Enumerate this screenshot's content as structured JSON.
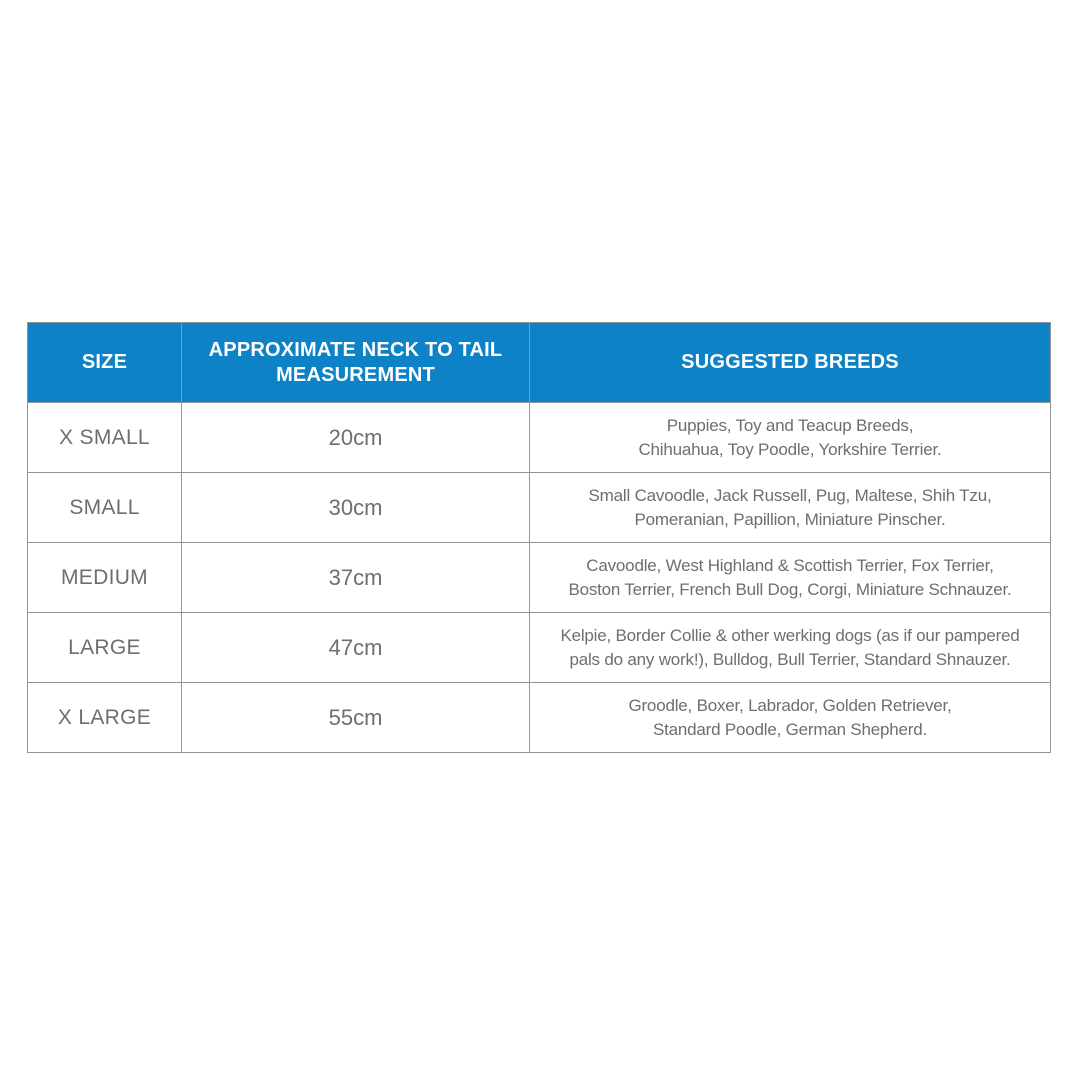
{
  "colors": {
    "header_bg": "#0e82c6",
    "header_text": "#ffffff",
    "body_text": "#6d6e71",
    "border": "#939598",
    "page_bg": "#ffffff"
  },
  "table": {
    "header": {
      "size": "SIZE",
      "measurement": "APPROXIMATE NECK TO TAIL\nMEASUREMENT",
      "breeds": "SUGGESTED BREEDS"
    },
    "rows": [
      {
        "size": "X SMALL",
        "measurement": "20cm",
        "breeds": "Puppies, Toy and Teacup Breeds,\nChihuahua, Toy Poodle, Yorkshire Terrier."
      },
      {
        "size": "SMALL",
        "measurement": "30cm",
        "breeds": "Small Cavoodle, Jack Russell, Pug, Maltese, Shih Tzu,\nPomeranian, Papillion, Miniature Pinscher."
      },
      {
        "size": "MEDIUM",
        "measurement": "37cm",
        "breeds": "Cavoodle, West Highland & Scottish Terrier, Fox Terrier,\nBoston Terrier, French Bull Dog, Corgi, Miniature Schnauzer."
      },
      {
        "size": "LARGE",
        "measurement": "47cm",
        "breeds": "Kelpie, Border Collie & other werking dogs (as if our pampered\npals do any work!), Bulldog, Bull Terrier, Standard Shnauzer."
      },
      {
        "size": "X LARGE",
        "measurement": "55cm",
        "breeds": "Groodle, Boxer, Labrador,  Golden Retriever,\nStandard Poodle, German Shepherd."
      }
    ]
  },
  "chart_data": {
    "type": "table",
    "title": "",
    "columns": [
      "SIZE",
      "APPROXIMATE NECK TO TAIL MEASUREMENT",
      "SUGGESTED BREEDS"
    ],
    "rows": [
      [
        "X SMALL",
        "20cm",
        "Puppies, Toy and Teacup Breeds, Chihuahua, Toy Poodle, Yorkshire Terrier."
      ],
      [
        "SMALL",
        "30cm",
        "Small Cavoodle, Jack Russell, Pug, Maltese, Shih Tzu, Pomeranian, Papillion, Miniature Pinscher."
      ],
      [
        "MEDIUM",
        "37cm",
        "Cavoodle, West Highland & Scottish Terrier, Fox Terrier, Boston Terrier, French Bull Dog, Corgi, Miniature Schnauzer."
      ],
      [
        "LARGE",
        "47cm",
        "Kelpie, Border Collie & other werking dogs (as if our pampered pals do any work!), Bulldog, Bull Terrier, Standard Shnauzer."
      ],
      [
        "X LARGE",
        "55cm",
        "Groodle, Boxer, Labrador,  Golden Retriever, Standard Poodle, German Shepherd."
      ]
    ],
    "measurements_cm": [
      20,
      30,
      37,
      47,
      55
    ]
  }
}
